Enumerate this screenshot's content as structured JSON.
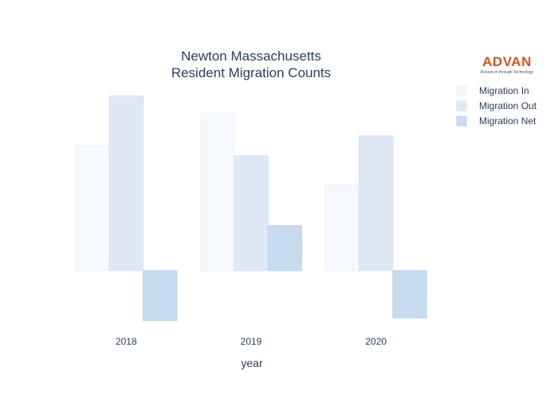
{
  "logo": {
    "name": "ADVAN",
    "tagline": "Research through Technology",
    "color": "#e0521e"
  },
  "chart_data": {
    "type": "bar",
    "title": [
      "Newton Massachusetts",
      "Resident Migration Counts"
    ],
    "xlabel": "year",
    "ylabel": "",
    "categories": [
      "2018",
      "2019",
      "2020"
    ],
    "series": [
      {
        "name": "Migration In",
        "values": [
          5000,
          6300,
          3450
        ],
        "color": "#f5f9fd",
        "stroke": "#e9f1fa"
      },
      {
        "name": "Migration Out",
        "values": [
          7000,
          4600,
          5400
        ],
        "color": "#dfe9f6",
        "stroke": "#d4e2f3"
      },
      {
        "name": "Migration Net",
        "values": [
          -2000,
          1800,
          -1900
        ],
        "color": "#c8dcf0",
        "stroke": "#bcd3ec"
      }
    ],
    "ylim": [
      -2300,
      7400
    ],
    "grid": false,
    "legend_position": "top-right"
  }
}
